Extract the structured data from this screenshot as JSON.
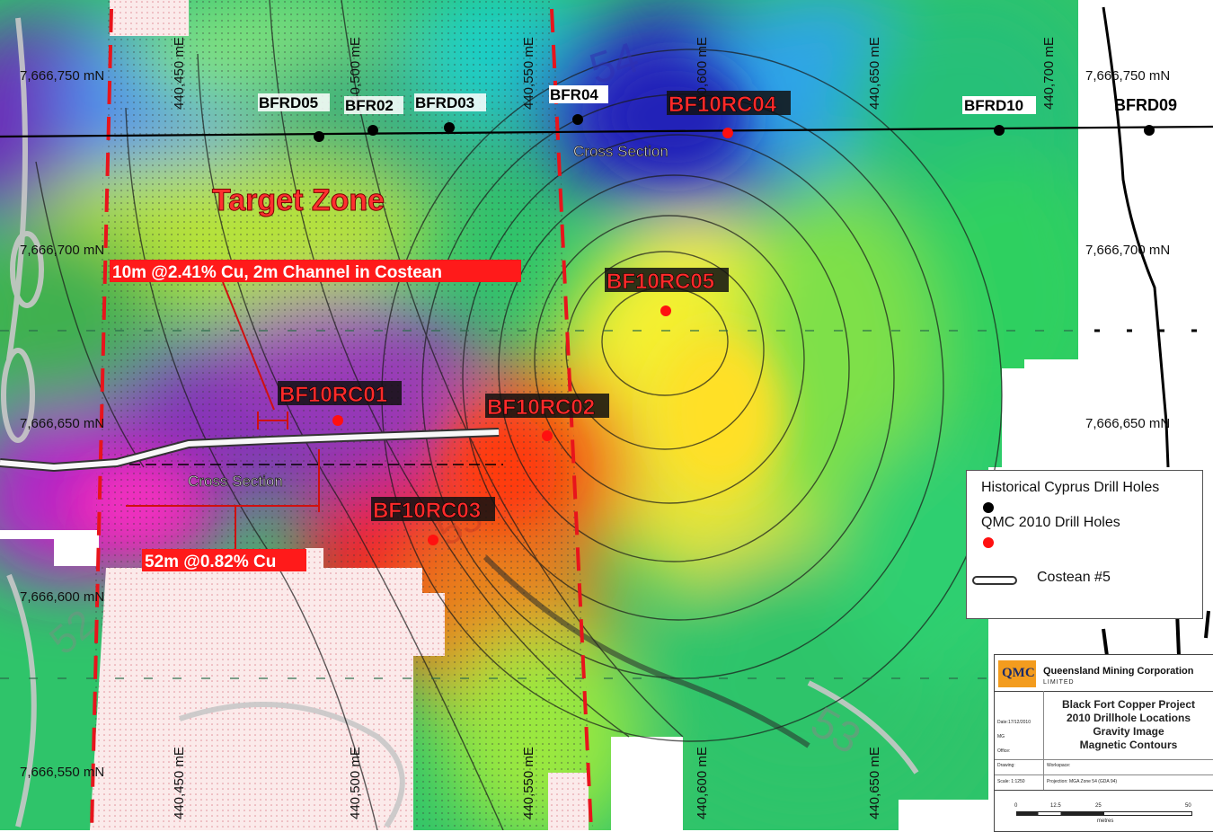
{
  "grid": {
    "easting_top": [
      "440,450 mE",
      "440,500 mE",
      "440,550 mE",
      "440,600 mE",
      "440,650 mE",
      "440,700 mE"
    ],
    "easting_bottom": [
      "440,450 mE",
      "440,500 mE",
      "440,550 mE",
      "440,600 mE",
      "440,650 mE"
    ],
    "northing_left": [
      "7,666,750 mN",
      "7,666,700 mN",
      "7,666,650 mN",
      "7,666,600 mN",
      "7,666,550 mN"
    ],
    "northing_right": [
      "7,666,750 mN",
      "7,666,700 mN",
      "7,666,650 mN"
    ]
  },
  "contours": [
    "54",
    "53",
    "52",
    "53"
  ],
  "historical_holes": [
    "BFRD05",
    "BFR02",
    "BFRD03",
    "BFR04",
    "BFRD10",
    "BFRD09"
  ],
  "qmc_holes": [
    "BF10RC04",
    "BF10RC05",
    "BF10RC01",
    "BF10RC02",
    "BF10RC03"
  ],
  "annotations": {
    "target_zone": "Target Zone",
    "cross_section_top": "Cross Section",
    "cross_section_bottom": "Cross Section",
    "intercept_upper": "10m @2.41% Cu, 2m Channel in Costean",
    "intercept_lower": "52m @0.82% Cu"
  },
  "legend": {
    "historical": "Historical Cyprus Drill Holes",
    "qmc": "QMC 2010 Drill Holes",
    "costean": "Costean #5"
  },
  "title_block": {
    "logo": "QMC",
    "company": "Queensland Mining Corporation",
    "company_sub": "LIMITED",
    "project": "Black Fort Copper Project",
    "title_lines": [
      "2010 Drillhole Locations",
      "Gravity Image",
      "Magnetic Contours"
    ],
    "date": "Date:17/12/2010",
    "drawn": "MG",
    "office": "Office:",
    "drawing": "Drawing:",
    "workspace": "Workspace:",
    "scale": "Scale: 1:1250",
    "projection": "Projection: MGA Zone 54 (GDA 94)",
    "scalebar_ticks": [
      "0",
      "12.5",
      "25",
      "50"
    ],
    "scalebar_unit": "metres"
  },
  "colors": {
    "qmc_red": "#ff1010",
    "historical_black": "#000000",
    "boundary_red": "#e8141c",
    "logo_orange": "#f39c1e"
  }
}
